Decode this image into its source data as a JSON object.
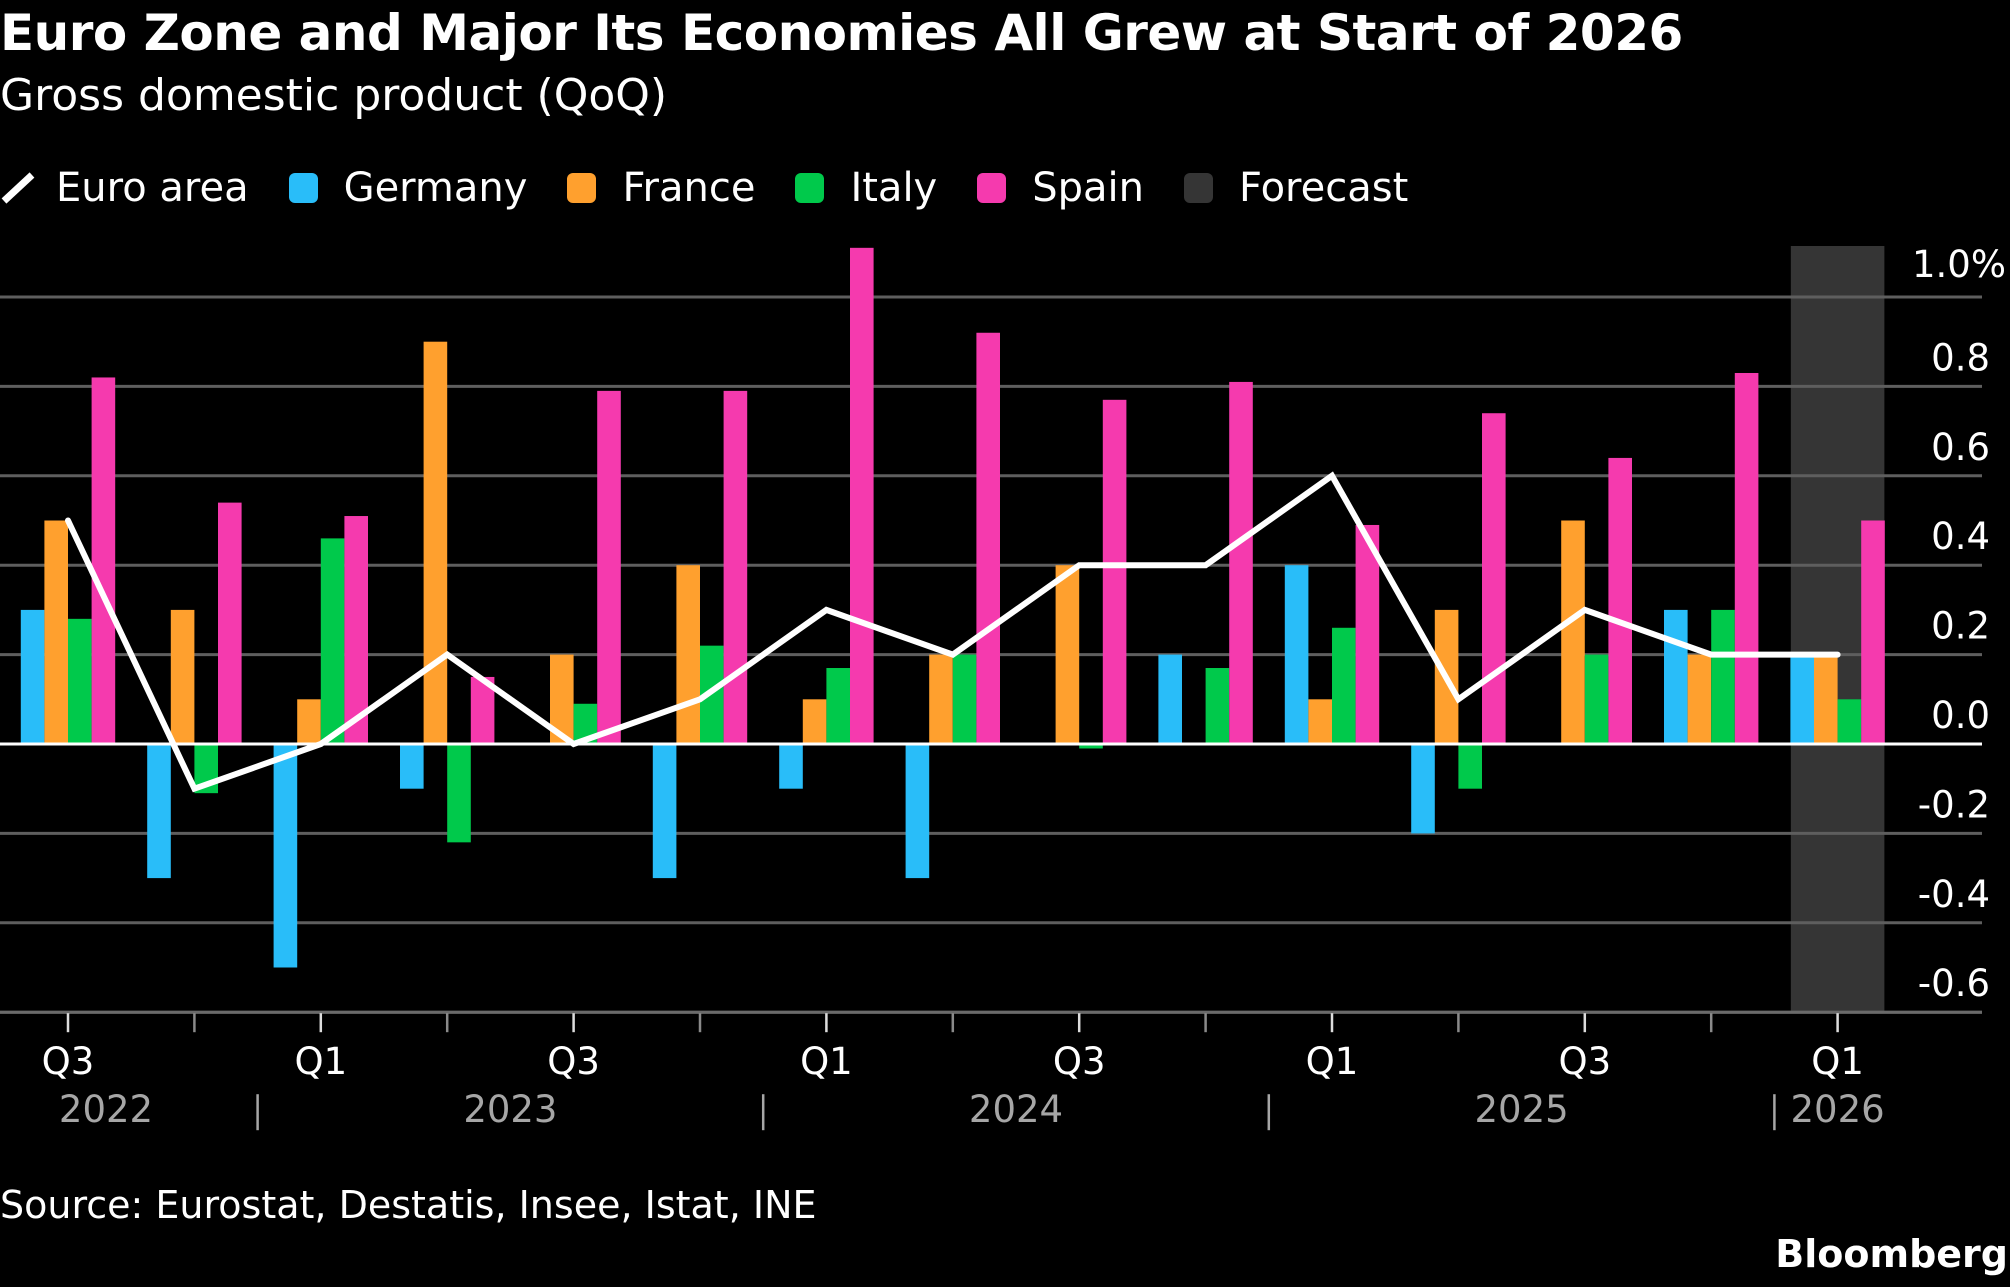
{
  "header": {
    "title": "Euro Zone and Major Its Economies All Grew at Start of 2026",
    "subtitle": "Gross domestic product (QoQ)"
  },
  "legend": [
    {
      "label": "Euro area",
      "icon": "line-slash-icon",
      "color": "#ffffff"
    },
    {
      "label": "Germany",
      "icon": "square-swatch",
      "color": "#29bdf9"
    },
    {
      "label": "France",
      "icon": "square-swatch",
      "color": "#ffa02e"
    },
    {
      "label": "Italy",
      "icon": "square-swatch",
      "color": "#00c94b"
    },
    {
      "label": "Spain",
      "icon": "square-swatch",
      "color": "#f53aae"
    },
    {
      "label": "Forecast",
      "icon": "square-swatch",
      "color": "#353535"
    }
  ],
  "footer": {
    "source": "Source: Eurostat, Destatis, Insee, Istat, INE",
    "brand": "Bloomberg"
  },
  "chart_data": {
    "type": "bar",
    "title": "Euro Zone and Major Its Economies All Grew at Start of 2026",
    "subtitle": "Gross domestic product (QoQ)",
    "xlabel": "",
    "ylabel": "",
    "categories": [
      "Q3 2022",
      "Q4 2022",
      "Q1 2023",
      "Q2 2023",
      "Q3 2023",
      "Q4 2023",
      "Q1 2024",
      "Q2 2024",
      "Q3 2024",
      "Q4 2024",
      "Q1 2025",
      "Q2 2025",
      "Q3 2025",
      "Q4 2025",
      "Q1 2026"
    ],
    "x_tick_labels": [
      "Q3",
      "",
      "Q1",
      "",
      "Q3",
      "",
      "Q1",
      "",
      "Q3",
      "",
      "Q1",
      "",
      "Q3",
      "",
      "Q1"
    ],
    "year_labels": [
      {
        "label": "2022",
        "from_index": 0,
        "to_index": 1
      },
      {
        "label": "2023",
        "from_index": 2,
        "to_index": 5
      },
      {
        "label": "2024",
        "from_index": 6,
        "to_index": 9
      },
      {
        "label": "2025",
        "from_index": 10,
        "to_index": 13
      },
      {
        "label": "2026",
        "from_index": 14,
        "to_index": 14
      }
    ],
    "series": [
      {
        "name": "Germany",
        "kind": "bar",
        "color": "#29bdf9",
        "values": [
          0.3,
          -0.3,
          -0.5,
          -0.1,
          0.0,
          -0.3,
          -0.1,
          -0.3,
          0.0,
          0.2,
          0.4,
          -0.2,
          0.0,
          0.3,
          0.2
        ]
      },
      {
        "name": "France",
        "kind": "bar",
        "color": "#ffa02e",
        "values": [
          0.5,
          0.3,
          0.1,
          0.9,
          0.2,
          0.4,
          0.1,
          0.2,
          0.4,
          0.0,
          0.1,
          0.3,
          0.5,
          0.2,
          0.2
        ]
      },
      {
        "name": "Italy",
        "kind": "bar",
        "color": "#00c94b",
        "values": [
          0.28,
          -0.11,
          0.46,
          -0.22,
          0.09,
          0.22,
          0.17,
          0.2,
          -0.01,
          0.17,
          0.26,
          -0.1,
          0.2,
          0.3,
          0.1
        ]
      },
      {
        "name": "Spain",
        "kind": "bar",
        "color": "#f53aae",
        "values": [
          0.82,
          0.54,
          0.51,
          0.15,
          0.79,
          0.79,
          1.11,
          0.92,
          0.77,
          0.81,
          0.49,
          0.74,
          0.64,
          0.83,
          0.5
        ]
      },
      {
        "name": "Euro area",
        "kind": "line",
        "color": "#ffffff",
        "values": [
          0.5,
          -0.1,
          0.0,
          0.2,
          0.0,
          0.1,
          0.3,
          0.2,
          0.4,
          0.4,
          0.6,
          0.1,
          0.3,
          0.2,
          0.2
        ]
      }
    ],
    "forecast": {
      "label": "Forecast",
      "categories": [
        "Q1 2026"
      ],
      "color": "#353535"
    },
    "ylim": [
      -0.6,
      1.0
    ],
    "y_ticks": [
      1.0,
      0.8,
      0.6,
      0.4,
      0.2,
      0.0,
      -0.2,
      -0.4,
      -0.6
    ],
    "y_tick_labels": [
      "1.0%",
      "0.8",
      "0.6",
      "0.4",
      "0.2",
      "0.0",
      "-0.2",
      "-0.4",
      "-0.6"
    ],
    "y_axis_side": "right",
    "grid": true,
    "legend_position": "top-left"
  }
}
